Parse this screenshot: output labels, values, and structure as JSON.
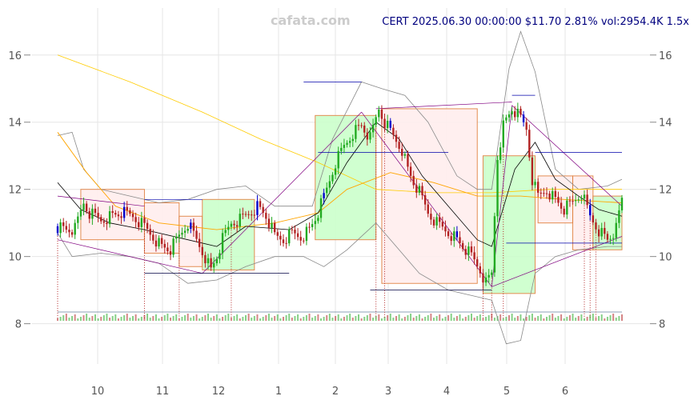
{
  "watermark": "cafata.com",
  "header": "CERT 2025.06.30 00:00:00 $11.70 2.81% vol:2954.4K 1.5x",
  "chart_data": {
    "type": "candlestick",
    "symbol": "CERT",
    "date": "2025.06.30 00:00:00",
    "last_price": 11.7,
    "change_pct": 2.81,
    "volume": "2954.4K",
    "volume_ratio": "1.5x",
    "x_tick_labels": [
      "10",
      "11",
      "12",
      "1",
      "2",
      "3",
      "4",
      "5",
      "6"
    ],
    "y_ticks": [
      8,
      10,
      12,
      14,
      16
    ],
    "ylim": [
      6.8,
      17.4
    ],
    "grid": true,
    "colors": {
      "up": "#22aa22",
      "down": "#b22222",
      "ma_long": "#ffcc00",
      "ma_mid": "#ffa500",
      "ma_short": "#000000",
      "band": "#888888",
      "trend": "#800080",
      "level": "#0000aa",
      "up_box": "#ccffcc",
      "down_box": "#ffeeee",
      "box_edge": "#e08040"
    },
    "price_path": [
      [
        0,
        10.9
      ],
      [
        3,
        10.8
      ],
      [
        6,
        10.8
      ],
      [
        9,
        11.6
      ],
      [
        11,
        11.3
      ],
      [
        15,
        11.1
      ],
      [
        18,
        11.2
      ],
      [
        22,
        11.3
      ],
      [
        26,
        11.2
      ],
      [
        30,
        10.9
      ],
      [
        33,
        10.6
      ],
      [
        36,
        10.3
      ],
      [
        39,
        10.2
      ],
      [
        42,
        10.6
      ],
      [
        45,
        11.0
      ],
      [
        48,
        10.5
      ],
      [
        51,
        10.0
      ],
      [
        53,
        9.6
      ],
      [
        55,
        10.0
      ],
      [
        57,
        10.5
      ],
      [
        60,
        11.0
      ],
      [
        63,
        11.1
      ],
      [
        66,
        11.3
      ],
      [
        69,
        11.5
      ],
      [
        72,
        11.2
      ],
      [
        75,
        10.6
      ],
      [
        78,
        10.5
      ],
      [
        81,
        10.7
      ],
      [
        84,
        10.6
      ],
      [
        87,
        10.8
      ],
      [
        90,
        11.3
      ],
      [
        93,
        12.0
      ],
      [
        96,
        12.8
      ],
      [
        99,
        13.3
      ],
      [
        102,
        13.7
      ],
      [
        105,
        13.9
      ],
      [
        108,
        13.5
      ],
      [
        111,
        14.4
      ],
      [
        113,
        14.0
      ],
      [
        116,
        13.6
      ],
      [
        119,
        13.2
      ],
      [
        121,
        12.6
      ],
      [
        123,
        12.2
      ],
      [
        125,
        11.9
      ],
      [
        128,
        11.3
      ],
      [
        131,
        11.0
      ],
      [
        134,
        10.8
      ],
      [
        137,
        10.6
      ],
      [
        140,
        10.3
      ],
      [
        143,
        10.0
      ],
      [
        146,
        9.6
      ],
      [
        148,
        9.2
      ],
      [
        150,
        9.5
      ],
      [
        152,
        13.0
      ],
      [
        154,
        13.9
      ],
      [
        157,
        14.4
      ],
      [
        160,
        14.1
      ],
      [
        162,
        13.8
      ],
      [
        164,
        12.3
      ],
      [
        166,
        11.8
      ],
      [
        169,
        12.0
      ],
      [
        172,
        11.7
      ],
      [
        175,
        11.4
      ],
      [
        178,
        11.6
      ],
      [
        181,
        11.9
      ],
      [
        184,
        11.2
      ],
      [
        187,
        10.8
      ],
      [
        190,
        10.5
      ],
      [
        193,
        10.8
      ],
      [
        195,
        11.7
      ]
    ],
    "ma_long": [
      [
        0,
        16.0
      ],
      [
        25,
        15.2
      ],
      [
        50,
        14.3
      ],
      [
        70,
        13.5
      ],
      [
        90,
        12.8
      ],
      [
        110,
        12.0
      ],
      [
        130,
        11.9
      ],
      [
        150,
        11.9
      ],
      [
        170,
        12.0
      ],
      [
        195,
        12.0
      ]
    ],
    "ma_mid": [
      [
        0,
        13.7
      ],
      [
        10,
        12.5
      ],
      [
        20,
        11.5
      ],
      [
        35,
        11.0
      ],
      [
        55,
        10.8
      ],
      [
        75,
        11.0
      ],
      [
        90,
        11.3
      ],
      [
        100,
        12.0
      ],
      [
        115,
        12.5
      ],
      [
        130,
        12.2
      ],
      [
        145,
        11.8
      ],
      [
        160,
        11.8
      ],
      [
        175,
        11.7
      ],
      [
        195,
        11.6
      ]
    ],
    "ma_short": [
      [
        0,
        12.2
      ],
      [
        8,
        11.4
      ],
      [
        18,
        11.0
      ],
      [
        30,
        10.8
      ],
      [
        45,
        10.5
      ],
      [
        55,
        10.3
      ],
      [
        65,
        10.9
      ],
      [
        80,
        10.8
      ],
      [
        90,
        11.3
      ],
      [
        100,
        12.8
      ],
      [
        110,
        14.0
      ],
      [
        118,
        13.5
      ],
      [
        126,
        12.4
      ],
      [
        135,
        11.5
      ],
      [
        145,
        10.5
      ],
      [
        150,
        10.3
      ],
      [
        158,
        12.6
      ],
      [
        165,
        13.4
      ],
      [
        172,
        12.3
      ],
      [
        180,
        11.8
      ],
      [
        187,
        11.4
      ],
      [
        195,
        11.2
      ]
    ],
    "upper_band": [
      [
        0,
        13.6
      ],
      [
        5,
        13.7
      ],
      [
        9,
        12.6
      ],
      [
        15,
        12.0
      ],
      [
        25,
        11.8
      ],
      [
        35,
        11.6
      ],
      [
        45,
        11.7
      ],
      [
        55,
        12.0
      ],
      [
        65,
        12.1
      ],
      [
        75,
        11.5
      ],
      [
        88,
        11.5
      ],
      [
        95,
        13.5
      ],
      [
        105,
        15.2
      ],
      [
        112,
        15.0
      ],
      [
        120,
        14.8
      ],
      [
        128,
        14.0
      ],
      [
        138,
        12.4
      ],
      [
        145,
        12.0
      ],
      [
        150,
        12.0
      ],
      [
        156,
        15.6
      ],
      [
        160,
        16.7
      ],
      [
        165,
        15.5
      ],
      [
        172,
        12.6
      ],
      [
        180,
        12.0
      ],
      [
        190,
        12.1
      ],
      [
        195,
        12.3
      ]
    ],
    "lower_band": [
      [
        0,
        10.7
      ],
      [
        5,
        10.0
      ],
      [
        15,
        10.1
      ],
      [
        25,
        10.0
      ],
      [
        35,
        9.8
      ],
      [
        45,
        9.2
      ],
      [
        55,
        9.3
      ],
      [
        65,
        9.7
      ],
      [
        75,
        10.0
      ],
      [
        85,
        10.0
      ],
      [
        92,
        9.7
      ],
      [
        100,
        10.2
      ],
      [
        110,
        11.0
      ],
      [
        118,
        10.2
      ],
      [
        125,
        9.5
      ],
      [
        135,
        9.0
      ],
      [
        145,
        8.8
      ],
      [
        150,
        8.7
      ],
      [
        155,
        7.4
      ],
      [
        160,
        7.5
      ],
      [
        165,
        9.5
      ],
      [
        172,
        10.0
      ],
      [
        180,
        10.2
      ],
      [
        190,
        10.3
      ],
      [
        195,
        10.3
      ]
    ],
    "trend_lines": [
      [
        [
          0,
          10.5
        ],
        [
          50,
          9.5
        ]
      ],
      [
        [
          50,
          9.5
        ],
        [
          105,
          14.3
        ]
      ],
      [
        [
          105,
          14.3
        ],
        [
          150,
          9.1
        ]
      ],
      [
        [
          150,
          9.1
        ],
        [
          157,
          14.5
        ]
      ],
      [
        [
          157,
          14.5
        ],
        [
          195,
          11.5
        ]
      ],
      [
        [
          150,
          9.1
        ],
        [
          195,
          10.6
        ]
      ],
      [
        [
          110,
          14.4
        ],
        [
          157,
          14.6
        ]
      ],
      [
        [
          0,
          11.8
        ],
        [
          30,
          11.5
        ]
      ]
    ],
    "level_lines": [
      [
        30,
        50,
        11.7
      ],
      [
        30,
        80,
        9.5
      ],
      [
        85,
        105,
        15.2
      ],
      [
        90,
        135,
        13.1
      ],
      [
        108,
        150,
        9.0
      ],
      [
        157,
        165,
        14.8
      ],
      [
        165,
        195,
        13.1
      ],
      [
        155,
        195,
        10.4
      ]
    ],
    "boxes": [
      {
        "x0": 8,
        "x1": 30,
        "ylo": 10.5,
        "yhi": 12.0,
        "kind": "down"
      },
      {
        "x0": 30,
        "x1": 42,
        "ylo": 10.1,
        "yhi": 11.6,
        "kind": "down"
      },
      {
        "x0": 42,
        "x1": 50,
        "ylo": 9.7,
        "yhi": 11.2,
        "kind": "down"
      },
      {
        "x0": 50,
        "x1": 68,
        "ylo": 9.6,
        "yhi": 11.7,
        "kind": "up"
      },
      {
        "x0": 89,
        "x1": 110,
        "ylo": 10.5,
        "yhi": 14.2,
        "kind": "up"
      },
      {
        "x0": 112,
        "x1": 145,
        "ylo": 9.2,
        "yhi": 14.4,
        "kind": "down"
      },
      {
        "x0": 147,
        "x1": 165,
        "ylo": 8.9,
        "yhi": 13.0,
        "kind": "up"
      },
      {
        "x0": 166,
        "x1": 178,
        "ylo": 11.0,
        "yhi": 12.4,
        "kind": "down"
      },
      {
        "x0": 178,
        "x1": 185,
        "ylo": 10.2,
        "yhi": 12.4,
        "kind": "down"
      },
      {
        "x0": 185,
        "x1": 195,
        "ylo": 10.2,
        "yhi": 11.8,
        "kind": "up"
      }
    ],
    "marker_lines": [
      0,
      30,
      42,
      60,
      110,
      113,
      147,
      150,
      154,
      182,
      184,
      186
    ]
  }
}
